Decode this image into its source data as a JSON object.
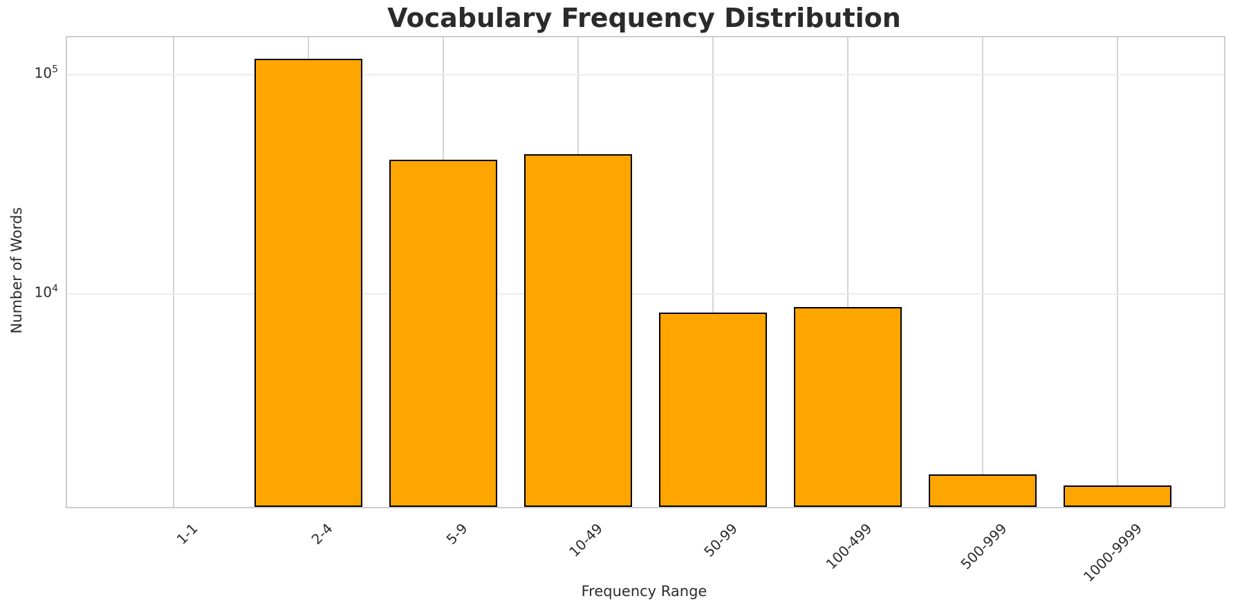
{
  "chart_data": {
    "type": "bar",
    "title": "Vocabulary Frequency Distribution",
    "xlabel": "Frequency Range",
    "ylabel": "Number of Words",
    "categories": [
      "1-1",
      "2-4",
      "5-9",
      "10-49",
      "50-99",
      "100-499",
      "500-999",
      "1000-9999"
    ],
    "values": [
      0,
      118500,
      41000,
      43500,
      8200,
      8700,
      1500,
      1330
    ],
    "yscale": "log",
    "ylim": [
      1065,
      148500
    ],
    "yticks": [
      {
        "value": 100000,
        "base": "10",
        "exp": "5"
      },
      {
        "value": 10000,
        "base": "10",
        "exp": "4"
      }
    ],
    "grid": true,
    "legend": "none",
    "bar_width_fraction": 0.8,
    "colors": {
      "bar_fill": "#ffa500",
      "bar_edge": "#000000",
      "grid_vertical": "#d4d4d4",
      "grid_horizontal": "#ececec",
      "spine": "#cccccc",
      "text": "#2b2b2b",
      "background": "#ffffff"
    }
  }
}
